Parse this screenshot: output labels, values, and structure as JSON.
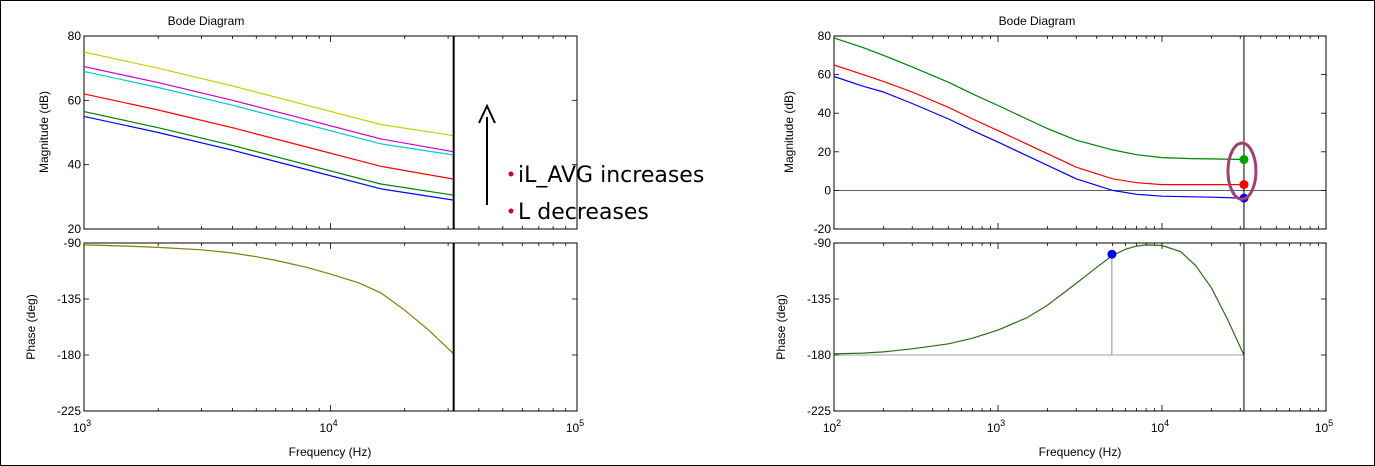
{
  "chart_data": [
    {
      "title": "Bode Diagram",
      "xlabel": "Frequency  (Hz)",
      "x_scale": "log",
      "xlim": [
        1000,
        100000
      ],
      "x_ticks": [
        1000,
        10000,
        100000
      ],
      "x_tick_labels": [
        [
          "10",
          "3"
        ],
        [
          "10",
          "4"
        ],
        [
          "10",
          "5"
        ]
      ],
      "vertical_marker_hz": 31600,
      "magnitude": {
        "type": "line",
        "ylabel": "Magnitude (dB)",
        "ylim": [
          20,
          80
        ],
        "y_ticks": [
          20,
          40,
          60,
          80
        ],
        "series": [
          {
            "color": "#cccc00",
            "x": [
              1000,
              2000,
              4000,
              8000,
              16000,
              31600
            ],
            "values": [
              75,
              70,
              64.5,
              58.5,
              52.5,
              49
            ]
          },
          {
            "color": "#cc00cc",
            "x": [
              1000,
              2000,
              4000,
              8000,
              16000,
              31600
            ],
            "values": [
              70.5,
              65.5,
              60,
              54,
              48,
              44
            ]
          },
          {
            "color": "#00cccc",
            "x": [
              1000,
              2000,
              4000,
              8000,
              16000,
              31600
            ],
            "values": [
              69,
              64,
              58.5,
              52.5,
              46.5,
              43
            ]
          },
          {
            "color": "#ff0000",
            "x": [
              1000,
              2000,
              4000,
              8000,
              16000,
              31600
            ],
            "values": [
              62,
              57,
              51.5,
              45.5,
              39.5,
              35.5
            ]
          },
          {
            "color": "#008000",
            "x": [
              1000,
              2000,
              4000,
              8000,
              16000,
              31600
            ],
            "values": [
              56.5,
              51.5,
              46,
              40,
              34,
              30.5
            ]
          },
          {
            "color": "#0000ff",
            "x": [
              1000,
              2000,
              4000,
              8000,
              16000,
              31600
            ],
            "values": [
              55,
              50,
              44.5,
              38.5,
              32.5,
              29
            ]
          }
        ]
      },
      "phase": {
        "type": "line",
        "ylabel": "Phase (deg)",
        "ylim": [
          -225,
          -90
        ],
        "y_ticks": [
          -90,
          -135,
          -180,
          -225
        ],
        "series": [
          {
            "color": "#8b7b00",
            "x": [
              1000,
              1500,
              2000,
              3000,
              4000,
              5000,
              6000,
              8000,
              10000,
              13000,
              16000,
              20000,
              25000,
              31600
            ],
            "values": [
              -91.5,
              -92.5,
              -93.5,
              -95.5,
              -98,
              -101,
              -104,
              -109.5,
              -115,
              -122,
              -130,
              -144,
              -160,
              -179
            ]
          }
        ]
      }
    },
    {
      "title": "Bode Diagram",
      "xlabel": "Frequency  (Hz)",
      "x_scale": "log",
      "xlim": [
        100,
        100000
      ],
      "x_ticks": [
        100,
        1000,
        10000,
        100000
      ],
      "x_tick_labels": [
        [
          "10",
          "2"
        ],
        [
          "10",
          "3"
        ],
        [
          "10",
          "4"
        ],
        [
          "10",
          "5"
        ]
      ],
      "vertical_marker_hz": 31600,
      "magnitude": {
        "type": "line",
        "ylabel": "Magnitude (dB)",
        "ylim": [
          -20,
          80
        ],
        "y_ticks": [
          -20,
          0,
          20,
          40,
          60,
          80
        ],
        "zero_line": true,
        "series": [
          {
            "color": "#008000",
            "x": [
              100,
              150,
              200,
              300,
              500,
              700,
              1000,
              1500,
              2000,
              3000,
              5000,
              7000,
              10000,
              15000,
              20000,
              31600
            ],
            "values": [
              79,
              74,
              70,
              64,
              56,
              50,
              44,
              37,
              32,
              26,
              21,
              18.5,
              17,
              16.5,
              16.3,
              16
            ]
          },
          {
            "color": "#ff0000",
            "x": [
              100,
              150,
              200,
              300,
              500,
              700,
              1000,
              1500,
              2000,
              3000,
              5000,
              7000,
              10000,
              15000,
              20000,
              31600
            ],
            "values": [
              65,
              60,
              56.5,
              51,
              43,
              37,
              31,
              24,
              19,
              12,
              6,
              4,
              3,
              3,
              3,
              3
            ]
          },
          {
            "color": "#0000ff",
            "x": [
              100,
              150,
              200,
              300,
              500,
              700,
              1000,
              1500,
              2000,
              3000,
              5000,
              7000,
              10000,
              15000,
              20000,
              31600
            ],
            "values": [
              59,
              54,
              51,
              45,
              37,
              31,
              25,
              18,
              13,
              6,
              0,
              -2,
              -3,
              -3.3,
              -3.5,
              -4
            ]
          }
        ],
        "markers": [
          {
            "x": 31600,
            "y": 16,
            "color": "#00a000"
          },
          {
            "x": 31600,
            "y": 3,
            "color": "#ff0000"
          },
          {
            "x": 31600,
            "y": -4,
            "color": "#0000ff"
          }
        ],
        "highlight_ellipse": {
          "x": 31600,
          "y": 10,
          "color": "#a0406e"
        }
      },
      "phase": {
        "type": "line",
        "ylabel": "Phase (deg)",
        "ylim": [
          -225,
          -90
        ],
        "y_ticks": [
          -90,
          -135,
          -180,
          -225
        ],
        "baseline": -180,
        "series": [
          {
            "color": "#2e6b1a",
            "x": [
              100,
              150,
              200,
              300,
              500,
              700,
              1000,
              1500,
              2000,
              3000,
              4000,
              5000,
              6000,
              7000,
              8000,
              10000,
              13000,
              16000,
              20000,
              25000,
              31600
            ],
            "values": [
              -179,
              -178.5,
              -177.5,
              -175,
              -171,
              -166.5,
              -160,
              -150,
              -140,
              -122.5,
              -109.5,
              -100,
              -95,
              -92.5,
              -91.5,
              -92,
              -97,
              -108,
              -126,
              -151,
              -180
            ]
          }
        ],
        "markers": [
          {
            "x": 4950,
            "y": -99,
            "color": "#0000ff",
            "drop_line": true
          }
        ]
      }
    }
  ],
  "annotation": {
    "line1": "iL_AVG  increases",
    "line2": "L decreases",
    "bullet_color": "#cc0033"
  }
}
